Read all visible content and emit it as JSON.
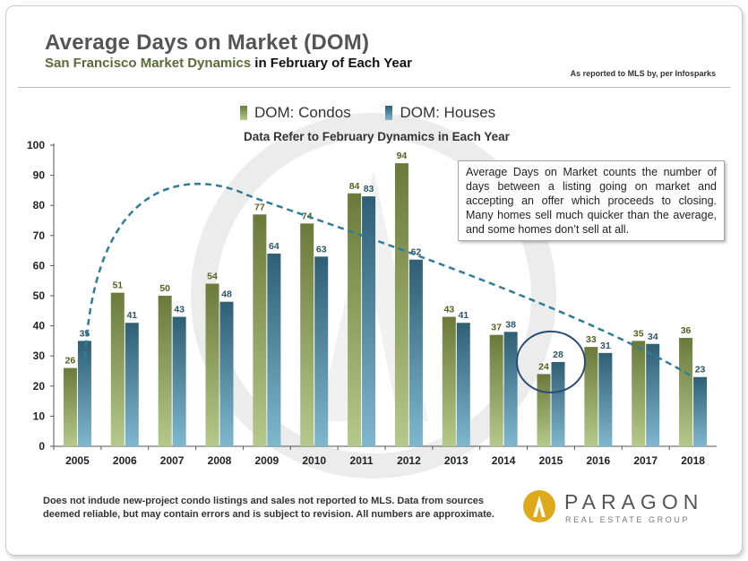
{
  "title": "Average Days on Market (DOM)",
  "subtitle": "San Francisco Market Dynamics",
  "subtitle_suffix": "in February of Each Year",
  "source": "As reported to MLS by, per Infosparks",
  "legend": {
    "condos": "DOM: Condos",
    "houses": "DOM: Houses"
  },
  "data_note": "Data Refer to February Dynamics in Each Year",
  "callout": "Average Days on Market counts the number of days between a listing going on market and accepting an offer which proceeds to closing. Many homes sell much quicker than the average, and some homes don’t sell at all.",
  "footnote": "Does not indude new-project condo listings and sales not reported to MLS. Data from sources deemed reliable, but may contain errors and is subject to revision. All numbers are approximate.",
  "logo": {
    "name": "PARAGON",
    "tagline": "REAL ESTATE GROUP"
  },
  "colors": {
    "condo_top": "#6b7a3a",
    "condo_bottom": "#b5c98a",
    "house_top": "#2f5f74",
    "house_bottom": "#7fb7cf",
    "condo_label": "#55621f",
    "house_label": "#2a5668",
    "trend": "#2e7d9a",
    "circle": "#2c4a78",
    "logo_gold": "#e0a91c"
  },
  "chart_data": {
    "type": "bar",
    "title": "Average Days on Market (DOM)",
    "categories": [
      "2005",
      "2006",
      "2007",
      "2008",
      "2009",
      "2010",
      "2011",
      "2012",
      "2013",
      "2014",
      "2015",
      "2016",
      "2017",
      "2018"
    ],
    "series": [
      {
        "name": "DOM: Condos",
        "values": [
          26,
          51,
          50,
          54,
          77,
          74,
          84,
          94,
          43,
          37,
          24,
          33,
          35,
          36
        ]
      },
      {
        "name": "DOM: Houses",
        "values": [
          35,
          41,
          43,
          48,
          64,
          63,
          83,
          62,
          41,
          38,
          28,
          31,
          34,
          23
        ]
      }
    ],
    "ylim": [
      0,
      100
    ],
    "yticks": [
      0,
      10,
      20,
      30,
      40,
      50,
      60,
      70,
      80,
      90,
      100
    ],
    "xlabel": "",
    "ylabel": "",
    "grid": false,
    "trendline": {
      "style": "dashed",
      "x": [
        2005,
        2008.5,
        2018
      ],
      "y": [
        26,
        84,
        23
      ]
    },
    "highlight_category": "2015"
  }
}
